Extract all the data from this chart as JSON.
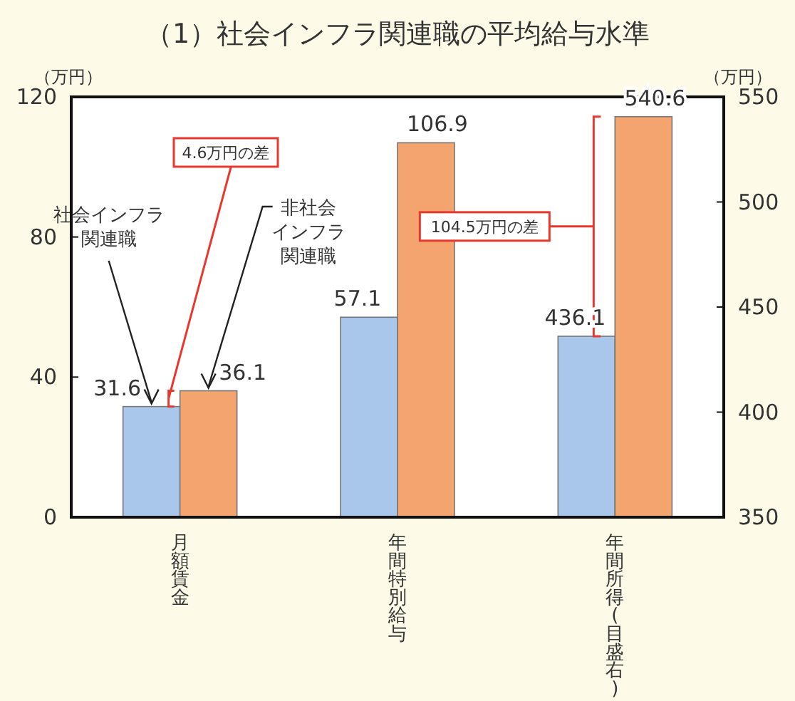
{
  "chart_data": {
    "type": "bar",
    "title": "（1）社会インフラ関連職の平均給与水準",
    "ylabel": "（万円）",
    "y2label": "（万円）",
    "categories": [
      "月額賃金",
      "年間特別給与",
      "年間所得(目盛右)"
    ],
    "series": [
      {
        "name": "社会インフラ関連職",
        "color": "#a9c7ea",
        "values": [
          31.6,
          57.1,
          null
        ]
      },
      {
        "name": "非社会インフラ関連職",
        "color": "#f4a46e",
        "values": [
          36.1,
          106.9,
          null
        ]
      },
      {
        "color": "#a9c7ea",
        "values": [
          null,
          null,
          436.1
        ],
        "axis": "y2"
      },
      {
        "color": "#f4a46e",
        "values": [
          null,
          null,
          540.6
        ],
        "axis": "y2"
      }
    ],
    "ylim": [
      0,
      120
    ],
    "yticks": [
      0,
      40,
      80,
      120
    ],
    "y2lim": [
      350,
      550
    ],
    "y2ticks": [
      350,
      400,
      450,
      500,
      550
    ],
    "data_labels": true,
    "grid": false,
    "annotations": [
      "4.6万円の差",
      "104.5万円の差"
    ]
  }
}
